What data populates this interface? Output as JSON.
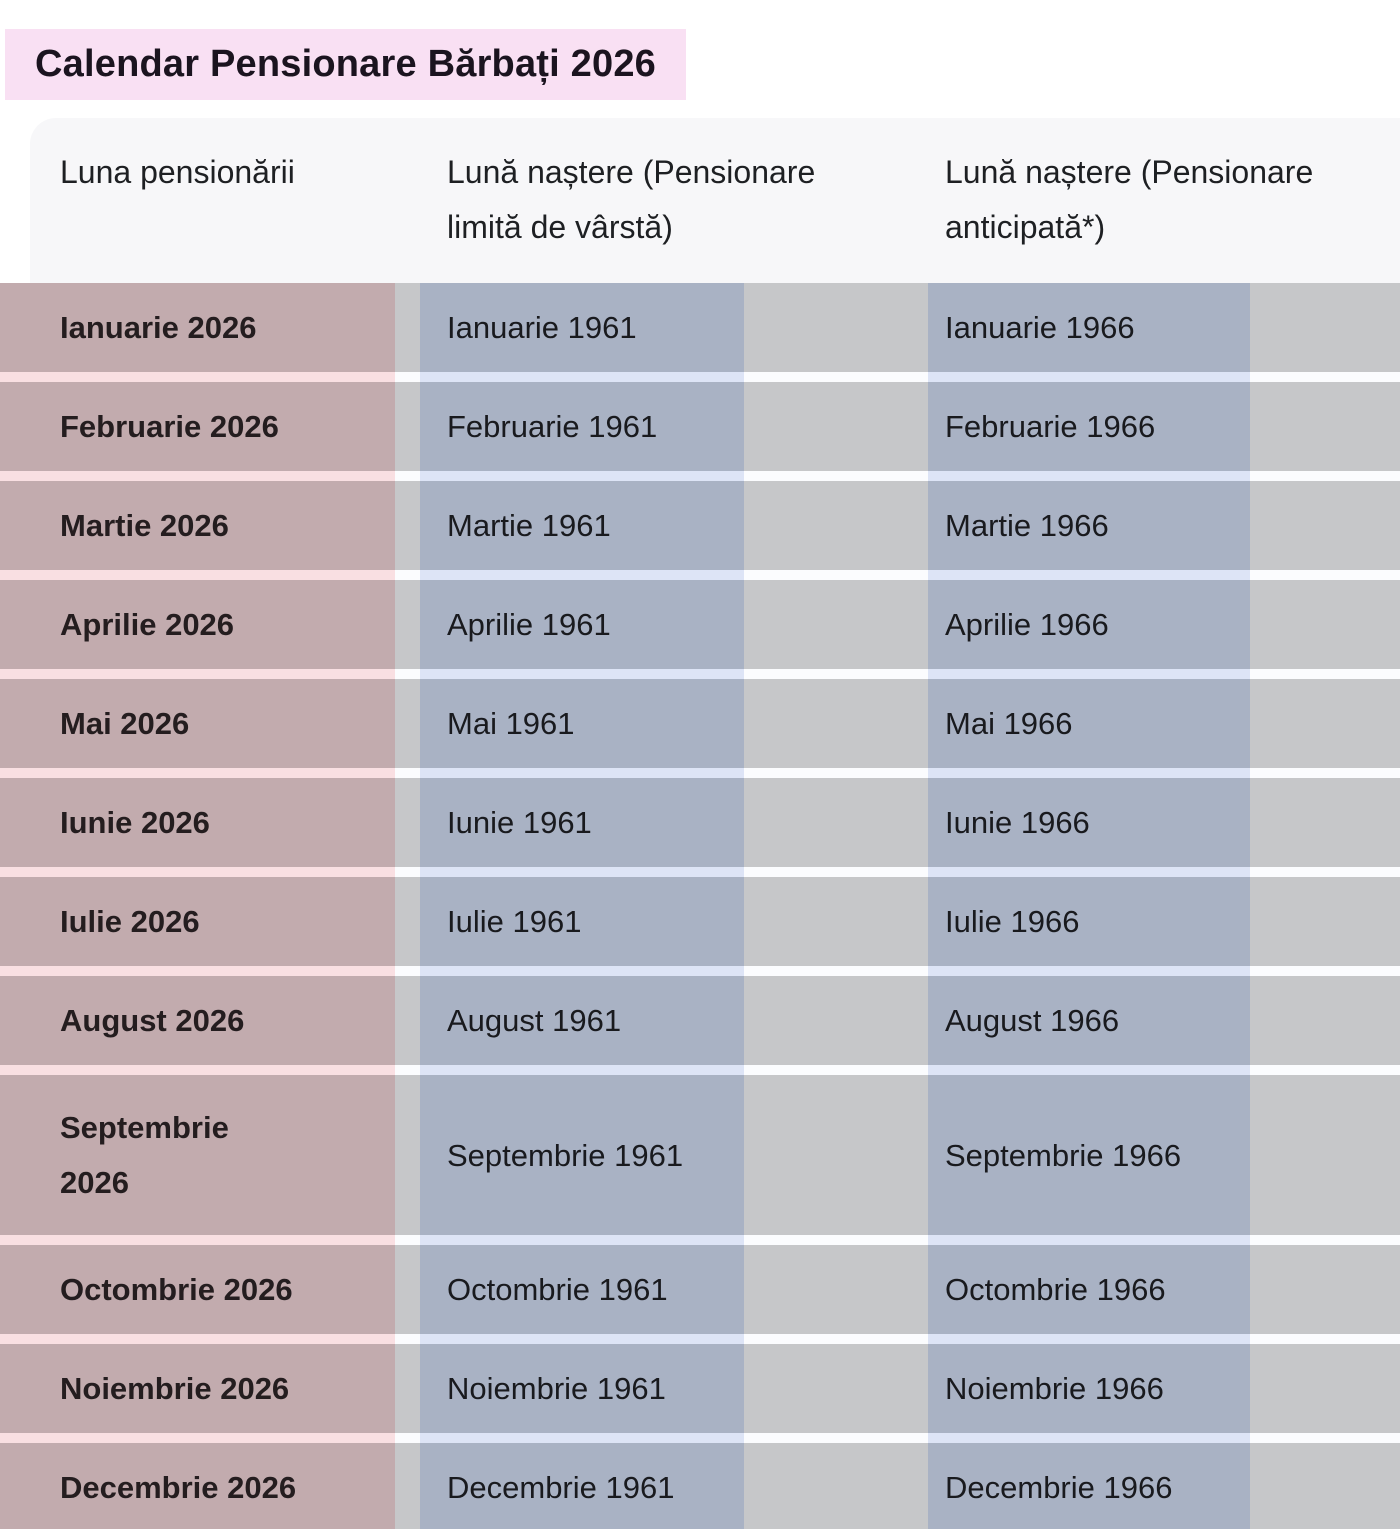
{
  "title": "Calendar Pensionare Bărbați 2026",
  "table": {
    "headers": {
      "col1": "Luna pensionării",
      "col2": "Lună naștere (Pensionare\nlimită de vârstă)",
      "col3": "Lună naștere (Pensionare\nanticipată*)"
    },
    "rows": [
      {
        "c1": "Ianuarie 2026",
        "c2": "Ianuarie 1961",
        "c3": "Ianuarie 1966"
      },
      {
        "c1": "Februarie 2026",
        "c2": "Februarie 1961",
        "c3": "Februarie 1966"
      },
      {
        "c1": "Martie 2026",
        "c2": "Martie 1961",
        "c3": "Martie 1966"
      },
      {
        "c1": "Aprilie 2026",
        "c2": "Aprilie 1961",
        "c3": "Aprilie 1966"
      },
      {
        "c1": "Mai 2026",
        "c2": "Mai 1961",
        "c3": "Mai 1966"
      },
      {
        "c1": "Iunie 2026",
        "c2": "Iunie 1961",
        "c3": "Iunie 1966"
      },
      {
        "c1": "Iulie 2026",
        "c2": "Iulie 1961",
        "c3": "Iulie 1966"
      },
      {
        "c1": "August 2026",
        "c2": "August 1961",
        "c3": "August 1966"
      },
      {
        "c1": "Septembrie\n2026",
        "c2": "Septembrie 1961",
        "c3": "Septembrie 1966"
      },
      {
        "c1": "Octombrie 2026",
        "c2": "Octombrie 1961",
        "c3": "Octombrie 1966"
      },
      {
        "c1": "Noiembrie 2026",
        "c2": "Noiembrie 1961",
        "c3": "Noiembrie 1966"
      },
      {
        "c1": "Decembrie 2026",
        "c2": "Decembrie 1961",
        "c3": "Decembrie 1966"
      }
    ]
  },
  "colors": {
    "title_highlight": "#f9e0f3",
    "header_background": "#f7f7f9",
    "row_gray": "#c6c7c9",
    "column_band_rose": "#c2abae",
    "column_band_blue": "#a9b2c4",
    "gap_rose": "#f9dfe2",
    "gap_blue": "#dde4f6",
    "gap_white": "#fbfcfe",
    "text": "#191a1e"
  }
}
